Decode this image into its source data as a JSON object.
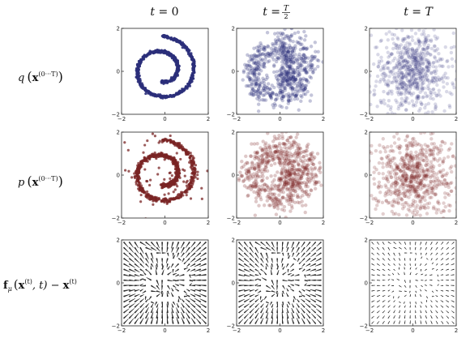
{
  "column_titles": [
    {
      "prefix": "t = ",
      "value": "0"
    },
    {
      "prefix": "t = ",
      "value": "T",
      "denominator": "2"
    },
    {
      "prefix": "t = ",
      "value": "T"
    }
  ],
  "row_labels": [
    {
      "main": "q",
      "bold": "x",
      "sup": "(0···T)",
      "paren_open": "(",
      "paren_close": ")"
    },
    {
      "main": "p",
      "bold": "x",
      "sup": "(0···T)",
      "paren_open": "(",
      "paren_close": ")"
    },
    {
      "bold_f": "f",
      "sub": "μ",
      "paren_open": "(",
      "bold": "x",
      "sup": "(t)",
      "mid": ", t) − ",
      "bold2": "x",
      "sup2": "(t)"
    }
  ],
  "tick_labels": [
    "−2",
    "0",
    "2"
  ],
  "colors": {
    "forward": "#2b2f7a",
    "reverse": "#7a2424",
    "arrows": "#2a2a2a"
  },
  "chart_data": [
    {
      "type": "scatter",
      "row": 0,
      "col": 0,
      "title": "",
      "distribution": "swiss-roll spiral",
      "noise": 0.03,
      "alpha": 0.9,
      "xlim": [
        -2,
        2
      ],
      "ylim": [
        -2,
        2
      ],
      "xticks": [
        -2,
        0,
        2
      ],
      "yticks": [
        -2,
        0,
        2
      ]
    },
    {
      "type": "scatter",
      "row": 0,
      "col": 1,
      "title": "",
      "distribution": "blurred spiral",
      "noise": 0.28,
      "alpha": 0.28,
      "xlim": [
        -2,
        2
      ],
      "ylim": [
        -2,
        2
      ],
      "xticks": [
        -2,
        0,
        2
      ],
      "yticks": [
        -2,
        0,
        2
      ]
    },
    {
      "type": "scatter",
      "row": 0,
      "col": 2,
      "title": "",
      "distribution": "isotropic gaussian",
      "noise": 1.0,
      "alpha": 0.18,
      "xlim": [
        -2,
        2
      ],
      "ylim": [
        -2,
        2
      ],
      "xticks": [
        -2,
        0,
        2
      ],
      "yticks": [
        -2,
        0,
        2
      ]
    },
    {
      "type": "scatter",
      "row": 1,
      "col": 0,
      "title": "",
      "distribution": "recovered spiral",
      "noise": 0.05,
      "alpha": 0.75,
      "xlim": [
        -2,
        2
      ],
      "ylim": [
        -2,
        2
      ],
      "xticks": [
        -2,
        0,
        2
      ],
      "yticks": [
        -2,
        0,
        2
      ]
    },
    {
      "type": "scatter",
      "row": 1,
      "col": 1,
      "title": "",
      "distribution": "blurred spiral",
      "noise": 0.3,
      "alpha": 0.25,
      "xlim": [
        -2,
        2
      ],
      "ylim": [
        -2,
        2
      ],
      "xticks": [
        -2,
        0,
        2
      ],
      "yticks": [
        -2,
        0,
        2
      ]
    },
    {
      "type": "scatter",
      "row": 1,
      "col": 2,
      "title": "",
      "distribution": "isotropic gaussian",
      "noise": 1.0,
      "alpha": 0.22,
      "xlim": [
        -2,
        2
      ],
      "ylim": [
        -2,
        2
      ],
      "xticks": [
        -2,
        0,
        2
      ],
      "yticks": [
        -2,
        0,
        2
      ]
    },
    {
      "type": "quiver",
      "row": 2,
      "col": 0,
      "title": "",
      "field": "drift toward spiral",
      "strength": 1.0,
      "xlim": [
        -2,
        2
      ],
      "ylim": [
        -2,
        2
      ],
      "xticks": [
        -2,
        0,
        2
      ],
      "yticks": [
        -2,
        0,
        2
      ]
    },
    {
      "type": "quiver",
      "row": 2,
      "col": 1,
      "title": "",
      "field": "drift toward spiral",
      "strength": 0.9,
      "xlim": [
        -2,
        2
      ],
      "ylim": [
        -2,
        2
      ],
      "xticks": [
        -2,
        0,
        2
      ],
      "yticks": [
        -2,
        0,
        2
      ]
    },
    {
      "type": "quiver",
      "row": 2,
      "col": 2,
      "title": "",
      "field": "drift toward spiral",
      "strength": 0.35,
      "xlim": [
        -2,
        2
      ],
      "ylim": [
        -2,
        2
      ],
      "xticks": [
        -2,
        0,
        2
      ],
      "yticks": [
        -2,
        0,
        2
      ]
    }
  ]
}
